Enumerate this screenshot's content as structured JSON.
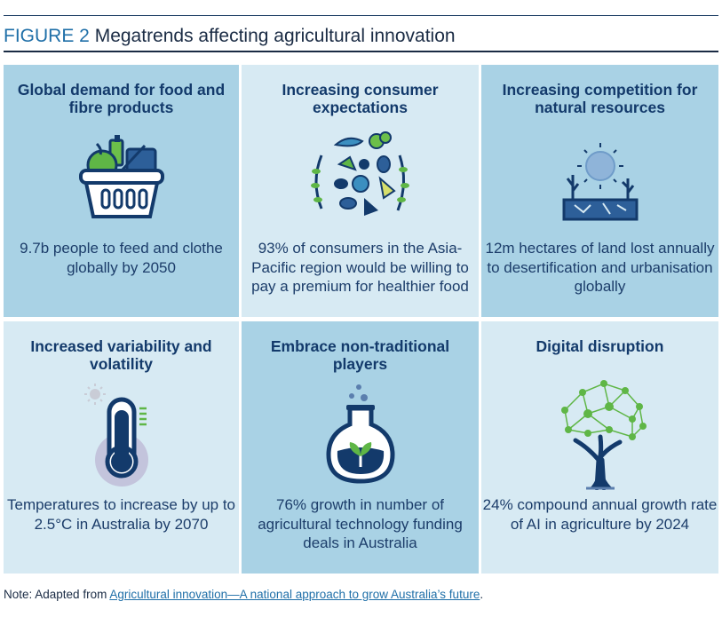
{
  "figure": {
    "label": "FIGURE 2",
    "title": "Megatrends affecting agricultural innovation"
  },
  "cells": [
    {
      "title": "Global demand for food and fibre products",
      "text": "9.7b people to feed and clothe globally by 2050",
      "icon": "food-basket-icon"
    },
    {
      "title": "Increasing consumer expectations",
      "text": "93% of consumers in the Asia-Pacific region would be willing to pay a premium for healthier food",
      "icon": "healthy-food-circle-icon"
    },
    {
      "title": "Increasing competition for natural resources",
      "text": "12m hectares of land lost annually to desertification and urbanisation globally",
      "icon": "dry-land-sun-icon"
    },
    {
      "title": "Increased variability and volatility",
      "text": "Temperatures to increase by up to 2.5°C in Australia by 2070",
      "icon": "thermometer-icon"
    },
    {
      "title": "Embrace non-traditional players",
      "text": "76% growth in number of agricultural technology funding deals in Australia",
      "icon": "flask-sprout-icon"
    },
    {
      "title": "Digital disruption",
      "text": "24% compound annual growth rate of AI in agriculture by 2024",
      "icon": "network-tree-icon"
    }
  ],
  "note": {
    "prefix": "Note: Adapted from ",
    "link": "Agricultural innovation—A national approach to grow Australia’s future",
    "suffix": "."
  },
  "colors": {
    "navy": "#133a6b",
    "cell_dark": "#a9d2e5",
    "cell_light": "#d7eaf3",
    "link": "#1f6fa8",
    "green": "#5fb646"
  }
}
